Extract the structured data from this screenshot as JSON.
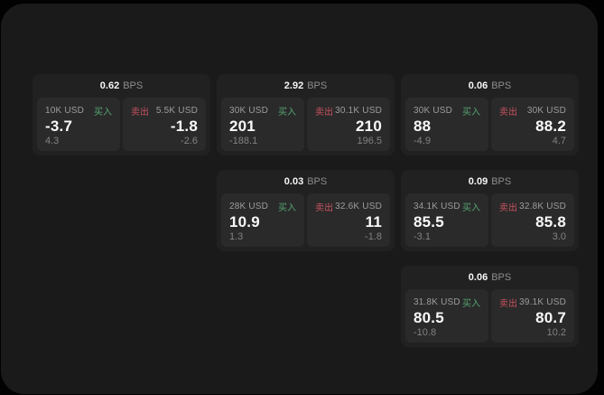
{
  "labels": {
    "bps_unit": "BPS",
    "buy": "买入",
    "sell": "卖出"
  },
  "colors": {
    "page_background": "#1a1a1a",
    "card_background": "#212121",
    "panel_background": "#2a2a2a",
    "buy_green": "#55a571",
    "sell_red": "#c5515f",
    "text_primary": "#fafafa",
    "text_secondary": "#9c9c9c",
    "text_muted": "#828282"
  },
  "cards": [
    {
      "bps": "0.62",
      "buy": {
        "amount": "10K USD",
        "value": "-3.7",
        "sub": "4.3"
      },
      "sell": {
        "amount": "5.5K USD",
        "value": "-1.8",
        "sub": "-2.6"
      }
    },
    {
      "bps": "2.92",
      "buy": {
        "amount": "30K USD",
        "value": "201",
        "sub": "-188.1"
      },
      "sell": {
        "amount": "30.1K USD",
        "value": "210",
        "sub": "196.5"
      }
    },
    {
      "bps": "0.06",
      "buy": {
        "amount": "30K USD",
        "value": "88",
        "sub": "-4.9"
      },
      "sell": {
        "amount": "30K USD",
        "value": "88.2",
        "sub": "4.7"
      }
    },
    {
      "bps": "0.03",
      "buy": {
        "amount": "28K USD",
        "value": "10.9",
        "sub": "1.3"
      },
      "sell": {
        "amount": "32.6K USD",
        "value": "11",
        "sub": "-1.8"
      }
    },
    {
      "bps": "0.09",
      "buy": {
        "amount": "34.1K USD",
        "value": "85.5",
        "sub": "-3.1"
      },
      "sell": {
        "amount": "32.8K USD",
        "value": "85.8",
        "sub": "3.0"
      }
    },
    {
      "bps": "0.06",
      "buy": {
        "amount": "31.8K USD",
        "value": "80.5",
        "sub": "-10.8"
      },
      "sell": {
        "amount": "39.1K USD",
        "value": "80.7",
        "sub": "10.2"
      }
    }
  ]
}
